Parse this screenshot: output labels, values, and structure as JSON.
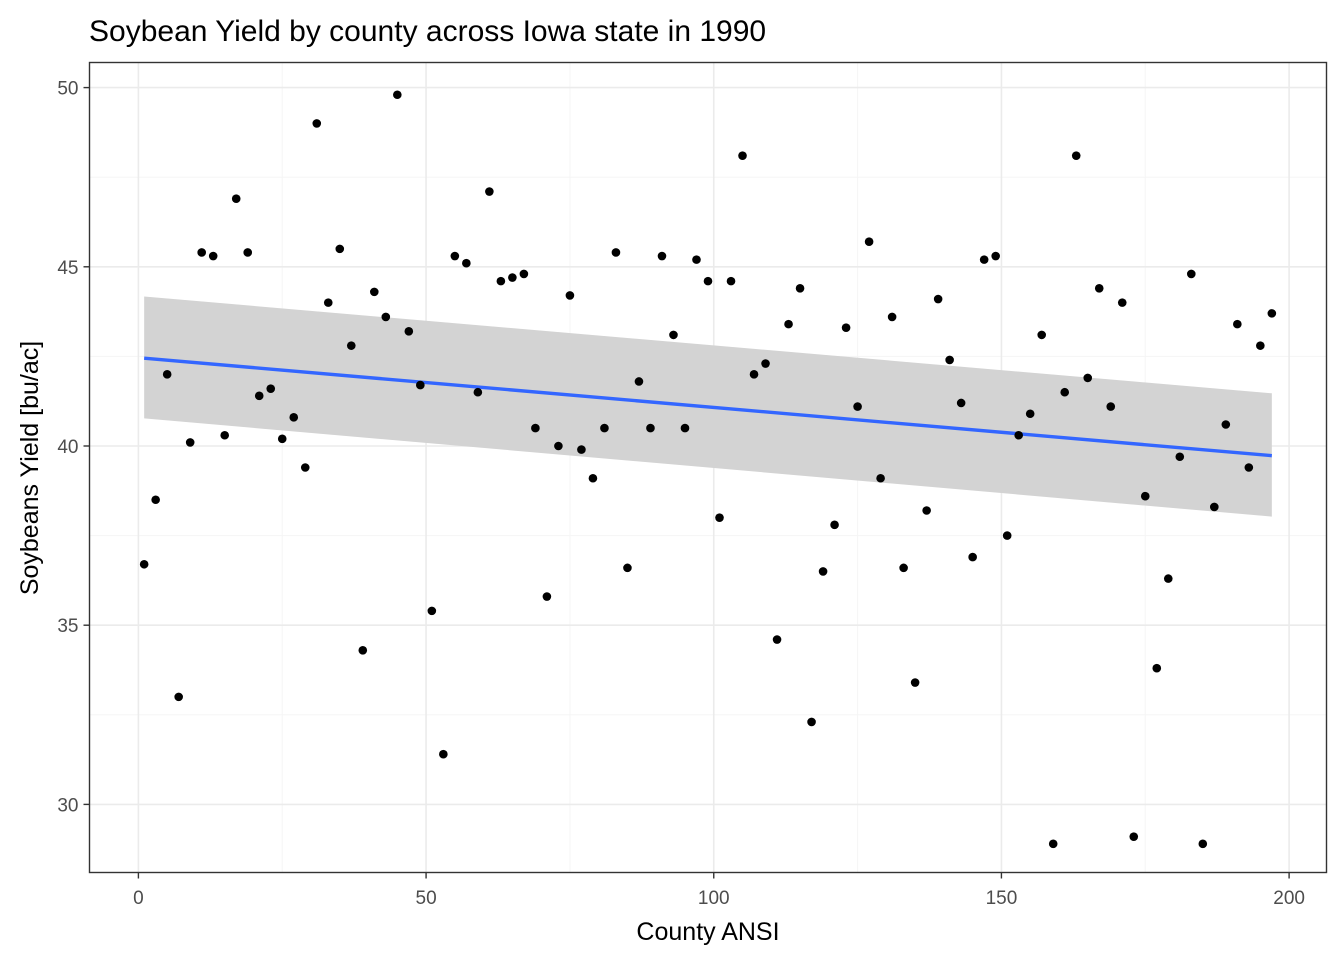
{
  "chart_data": {
    "type": "scatter",
    "title": "Soybean Yield by county across Iowa state in 1990",
    "xlabel": "County ANSI",
    "ylabel": "Soybeans Yield [bu/ac]",
    "xlim": [
      -8.5,
      206.5
    ],
    "ylim": [
      28.1,
      50.7
    ],
    "x_ticks": [
      0,
      50,
      100,
      150,
      200
    ],
    "y_ticks": [
      30,
      35,
      40,
      45,
      50
    ],
    "x_minor": [
      25,
      75,
      125,
      175
    ],
    "y_minor": [
      32.5,
      37.5,
      42.5,
      47.5
    ],
    "grid": true,
    "colors": {
      "points": "#000000",
      "trend_line": "#3366ff",
      "confidence_band": "#d3d3d3",
      "grid_major": "#ebebeb",
      "grid_minor": "#f5f5f5",
      "panel_border": "#333333"
    },
    "points": [
      {
        "x": 1,
        "y": 36.7
      },
      {
        "x": 3,
        "y": 38.5
      },
      {
        "x": 5,
        "y": 42.0
      },
      {
        "x": 7,
        "y": 33.0
      },
      {
        "x": 9,
        "y": 40.1
      },
      {
        "x": 11,
        "y": 45.4
      },
      {
        "x": 13,
        "y": 45.3
      },
      {
        "x": 15,
        "y": 40.3
      },
      {
        "x": 17,
        "y": 46.9
      },
      {
        "x": 19,
        "y": 45.4
      },
      {
        "x": 21,
        "y": 41.4
      },
      {
        "x": 23,
        "y": 41.6
      },
      {
        "x": 25,
        "y": 40.2
      },
      {
        "x": 27,
        "y": 40.8
      },
      {
        "x": 29,
        "y": 39.4
      },
      {
        "x": 31,
        "y": 49.0
      },
      {
        "x": 33,
        "y": 44.0
      },
      {
        "x": 35,
        "y": 45.5
      },
      {
        "x": 37,
        "y": 42.8
      },
      {
        "x": 39,
        "y": 34.3
      },
      {
        "x": 41,
        "y": 44.3
      },
      {
        "x": 43,
        "y": 43.6
      },
      {
        "x": 45,
        "y": 49.8
      },
      {
        "x": 47,
        "y": 43.2
      },
      {
        "x": 49,
        "y": 41.7
      },
      {
        "x": 51,
        "y": 35.4
      },
      {
        "x": 53,
        "y": 31.4
      },
      {
        "x": 55,
        "y": 45.3
      },
      {
        "x": 57,
        "y": 45.1
      },
      {
        "x": 59,
        "y": 41.5
      },
      {
        "x": 61,
        "y": 47.1
      },
      {
        "x": 63,
        "y": 44.6
      },
      {
        "x": 65,
        "y": 44.7
      },
      {
        "x": 67,
        "y": 44.8
      },
      {
        "x": 69,
        "y": 40.5
      },
      {
        "x": 71,
        "y": 35.8
      },
      {
        "x": 73,
        "y": 40.0
      },
      {
        "x": 75,
        "y": 44.2
      },
      {
        "x": 77,
        "y": 39.9
      },
      {
        "x": 79,
        "y": 39.1
      },
      {
        "x": 81,
        "y": 40.5
      },
      {
        "x": 83,
        "y": 45.4
      },
      {
        "x": 85,
        "y": 36.6
      },
      {
        "x": 87,
        "y": 41.8
      },
      {
        "x": 89,
        "y": 40.5
      },
      {
        "x": 91,
        "y": 45.3
      },
      {
        "x": 93,
        "y": 43.1
      },
      {
        "x": 95,
        "y": 40.5
      },
      {
        "x": 97,
        "y": 45.2
      },
      {
        "x": 99,
        "y": 44.6
      },
      {
        "x": 101,
        "y": 38.0
      },
      {
        "x": 103,
        "y": 44.6
      },
      {
        "x": 105,
        "y": 48.1
      },
      {
        "x": 107,
        "y": 42.0
      },
      {
        "x": 109,
        "y": 42.3
      },
      {
        "x": 111,
        "y": 34.6
      },
      {
        "x": 113,
        "y": 43.4
      },
      {
        "x": 115,
        "y": 44.4
      },
      {
        "x": 117,
        "y": 32.3
      },
      {
        "x": 119,
        "y": 36.5
      },
      {
        "x": 121,
        "y": 37.8
      },
      {
        "x": 123,
        "y": 43.3
      },
      {
        "x": 125,
        "y": 41.1
      },
      {
        "x": 127,
        "y": 45.7
      },
      {
        "x": 129,
        "y": 39.1
      },
      {
        "x": 131,
        "y": 43.6
      },
      {
        "x": 133,
        "y": 36.6
      },
      {
        "x": 135,
        "y": 33.4
      },
      {
        "x": 137,
        "y": 38.2
      },
      {
        "x": 139,
        "y": 44.1
      },
      {
        "x": 141,
        "y": 42.4
      },
      {
        "x": 143,
        "y": 41.2
      },
      {
        "x": 145,
        "y": 36.9
      },
      {
        "x": 147,
        "y": 45.2
      },
      {
        "x": 149,
        "y": 45.3
      },
      {
        "x": 151,
        "y": 37.5
      },
      {
        "x": 153,
        "y": 40.3
      },
      {
        "x": 155,
        "y": 40.9
      },
      {
        "x": 157,
        "y": 43.1
      },
      {
        "x": 159,
        "y": 28.9
      },
      {
        "x": 161,
        "y": 41.5
      },
      {
        "x": 163,
        "y": 48.1
      },
      {
        "x": 165,
        "y": 41.9
      },
      {
        "x": 167,
        "y": 44.4
      },
      {
        "x": 169,
        "y": 41.1
      },
      {
        "x": 171,
        "y": 44.0
      },
      {
        "x": 173,
        "y": 29.1
      },
      {
        "x": 175,
        "y": 38.6
      },
      {
        "x": 177,
        "y": 33.8
      },
      {
        "x": 179,
        "y": 36.3
      },
      {
        "x": 181,
        "y": 39.7
      },
      {
        "x": 183,
        "y": 44.8
      },
      {
        "x": 185,
        "y": 28.9
      },
      {
        "x": 187,
        "y": 38.3
      },
      {
        "x": 189,
        "y": 40.6
      },
      {
        "x": 191,
        "y": 43.4
      },
      {
        "x": 193,
        "y": 39.4
      },
      {
        "x": 195,
        "y": 42.8
      },
      {
        "x": 197,
        "y": 43.7
      }
    ],
    "trend": {
      "method": "linear",
      "x": [
        1,
        197
      ],
      "y": [
        42.45,
        39.73
      ],
      "ci_upper": [
        44.17,
        41.47
      ],
      "ci_lower": [
        40.77,
        38.03
      ]
    }
  }
}
